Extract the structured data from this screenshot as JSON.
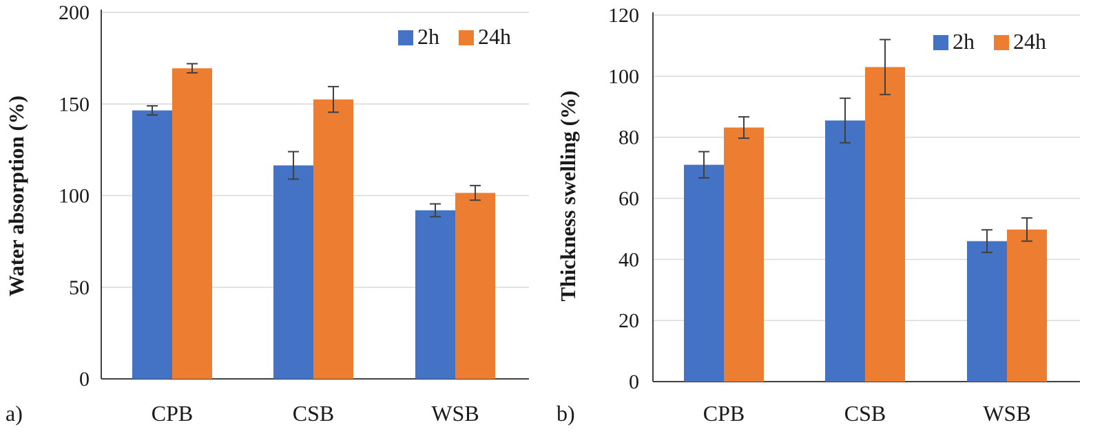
{
  "chart_data": [
    {
      "type": "bar",
      "panel_label": "a)",
      "title": "",
      "xlabel": "",
      "ylabel": "Water absorption (%)",
      "categories": [
        "CPB",
        "CSB",
        "WSB"
      ],
      "ylim": [
        0,
        200
      ],
      "yticks": [
        0,
        50,
        100,
        150,
        200
      ],
      "grid": true,
      "legend": "top-right",
      "series": [
        {
          "name": "2h",
          "color": "#4472C4",
          "values": [
            146.5,
            116.5,
            92
          ],
          "errors": [
            2.5,
            7.5,
            3.5
          ]
        },
        {
          "name": "24h",
          "color": "#ED7D31",
          "values": [
            169.5,
            152.5,
            101.5
          ],
          "errors": [
            2.5,
            7,
            4
          ]
        }
      ]
    },
    {
      "type": "bar",
      "panel_label": "b)",
      "title": "",
      "xlabel": "",
      "ylabel": "Thickness swelling (%)",
      "categories": [
        "CPB",
        "CSB",
        "WSB"
      ],
      "ylim": [
        0,
        120
      ],
      "yticks": [
        0,
        20,
        40,
        60,
        80,
        100,
        120
      ],
      "grid": true,
      "legend": "top-right",
      "series": [
        {
          "name": "2h",
          "color": "#4472C4",
          "values": [
            71,
            85.5,
            46
          ],
          "errors": [
            4.3,
            7.3,
            3.7
          ]
        },
        {
          "name": "24h",
          "color": "#ED7D31",
          "values": [
            83.2,
            103,
            49.8
          ],
          "errors": [
            3.5,
            9,
            3.8
          ]
        }
      ]
    }
  ]
}
